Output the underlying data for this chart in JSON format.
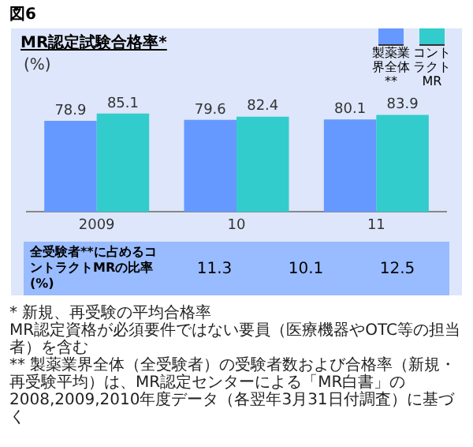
{
  "chart_data": [
    {
      "type": "bar",
      "title": "図6",
      "subtitle": "MR認定試験合格率*",
      "ylabel": "(%)",
      "categories": [
        "2009",
        "10",
        "11"
      ],
      "series": [
        {
          "name": "製薬業界全体**",
          "color": "#6699ff",
          "values": [
            78.9,
            79.6,
            80.1
          ]
        },
        {
          "name": "コントラクトMR",
          "color": "#33cccc",
          "values": [
            85.1,
            82.4,
            83.9
          ]
        }
      ],
      "data_labels": true,
      "legend": "top right",
      "grid": false,
      "annotations": [
        "* 新規、再受験の平均合格率",
        "MR認定資格が必須要件ではない要員（医療機器やOTC等の担当者）を含む",
        "** 製薬業界全体（全受験者）の受験者数および合格率（新規・再受験平均）は、MR認定センターによる「MR白書」の2008,2009,2010年度データ（各翌年3月31日付調査）に基づく"
      ]
    },
    {
      "type": "other",
      "title": "全受験者**に占めるコントラクトMRの比率\n(%)",
      "values": [
        11.3,
        10.1,
        12.5
      ],
      "data_labels": true
    }
  ]
}
